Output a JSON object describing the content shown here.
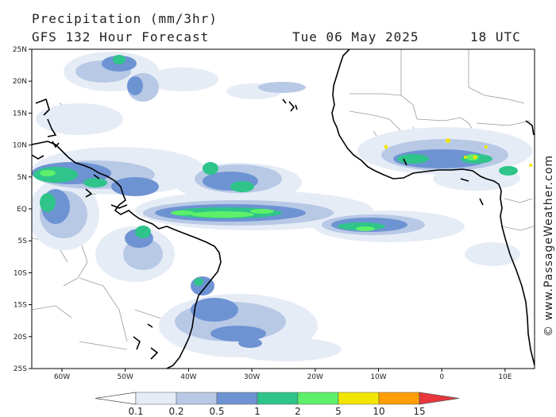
{
  "header": {
    "title": "Precipitation (mm/3hr)",
    "model": "GFS 132 Hour Forecast",
    "date": "Tue 06 May 2025",
    "time": "18 UTC"
  },
  "credit": "© www.PassageWeather.com",
  "map": {
    "lat_labels": [
      "25N",
      "20N",
      "15N",
      "10N",
      "5N",
      "EQ",
      "5S",
      "10S",
      "15S",
      "20S",
      "25S"
    ],
    "lon_labels": [
      "60W",
      "50W",
      "40W",
      "30W",
      "20W",
      "10W",
      "0",
      "10E"
    ]
  },
  "legend": {
    "labels": [
      "0.1",
      "0.2",
      "0.5",
      "1",
      "2",
      "5",
      "10",
      "15"
    ],
    "colors": [
      "#e6ecf6",
      "#b8c9e6",
      "#6e93d3",
      "#2fc48a",
      "#5ef06a",
      "#f2e600",
      "#ff9e00",
      "#e8363c"
    ]
  },
  "colors": {
    "light": "#e6ecf6",
    "mid": "#b8c9e6",
    "blue": "#6e93d3",
    "teal": "#2fc48a",
    "green": "#5ef06a",
    "yellow": "#f2e600"
  }
}
